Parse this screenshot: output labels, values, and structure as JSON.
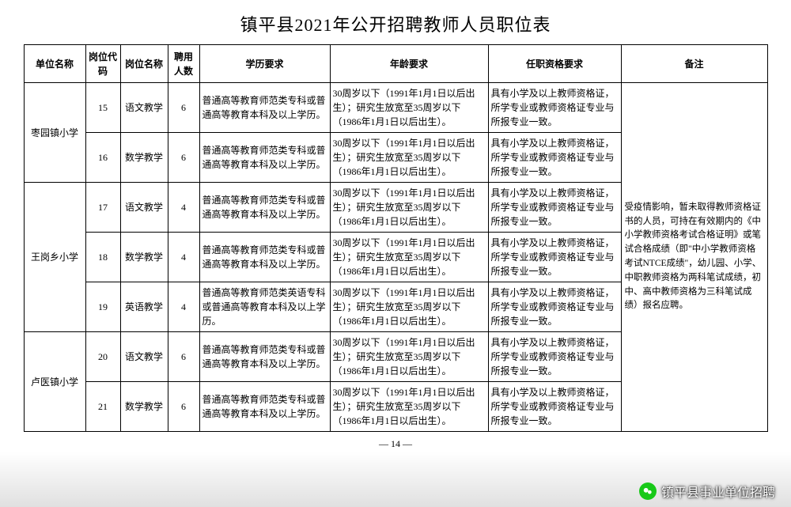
{
  "title": "镇平县2021年公开招聘教师人员职位表",
  "pageNumber": "— 14 —",
  "watermark": "镇平县事业单位招聘",
  "headers": {
    "unit": "单位名称",
    "code": "岗位代码",
    "position": "岗位名称",
    "count": "聘用人数",
    "education": "学历要求",
    "age": "年龄要求",
    "qualification": "任职资格要求",
    "remark": "备注"
  },
  "groups": [
    {
      "unit": "枣园镇小学",
      "rows": [
        {
          "code": "15",
          "position": "语文教学",
          "count": "6",
          "education": "普通高等教育师范类专科或普通高等教育本科及以上学历。",
          "age": "30周岁以下（1991年1月1日以后出生）；研究生放宽至35周岁以下（1986年1月1日以后出生）。",
          "qualification": "具有小学及以上教师资格证，所学专业或教师资格证专业与所报专业一致。"
        },
        {
          "code": "16",
          "position": "数学教学",
          "count": "6",
          "education": "普通高等教育师范类专科或普通高等教育本科及以上学历。",
          "age": "30周岁以下（1991年1月1日以后出生）；研究生放宽至35周岁以下（1986年1月1日以后出生）。",
          "qualification": "具有小学及以上教师资格证，所学专业或教师资格证专业与所报专业一致。"
        }
      ]
    },
    {
      "unit": "王岗乡小学",
      "rows": [
        {
          "code": "17",
          "position": "语文教学",
          "count": "4",
          "education": "普通高等教育师范类专科或普通高等教育本科及以上学历。",
          "age": "30周岁以下（1991年1月1日以后出生）；研究生放宽至35周岁以下（1986年1月1日以后出生）。",
          "qualification": "具有小学及以上教师资格证，所学专业或教师资格证专业与所报专业一致。"
        },
        {
          "code": "18",
          "position": "数学教学",
          "count": "4",
          "education": "普通高等教育师范类专科或普通高等教育本科及以上学历。",
          "age": "30周岁以下（1991年1月1日以后出生）；研究生放宽至35周岁以下（1986年1月1日以后出生）。",
          "qualification": "具有小学及以上教师资格证，所学专业或教师资格证专业与所报专业一致。"
        },
        {
          "code": "19",
          "position": "英语教学",
          "count": "4",
          "education": "普通高等教育师范类英语专科或普通高等教育本科及以上学历。",
          "age": "30周岁以下（1991年1月1日以后出生）；研究生放宽至35周岁以下（1986年1月1日以后出生）。",
          "qualification": "具有小学及以上教师资格证，所学专业或教师资格证专业与所报专业一致。"
        }
      ]
    },
    {
      "unit": "卢医镇小学",
      "rows": [
        {
          "code": "20",
          "position": "语文教学",
          "count": "6",
          "education": "普通高等教育师范类专科或普通高等教育本科及以上学历。",
          "age": "30周岁以下（1991年1月1日以后出生）；研究生放宽至35周岁以下（1986年1月1日以后出生）。",
          "qualification": "具有小学及以上教师资格证，所学专业或教师资格证专业与所报专业一致。"
        },
        {
          "code": "21",
          "position": "数学教学",
          "count": "6",
          "education": "普通高等教育师范类专科或普通高等教育本科及以上学历。",
          "age": "30周岁以下（1991年1月1日以后出生）；研究生放宽至35周岁以下（1986年1月1日以后出生）。",
          "qualification": "具有小学及以上教师资格证，所学专业或教师资格证专业与所报专业一致。"
        }
      ]
    }
  ],
  "remarkText": "受疫情影响，暂未取得教师资格证书的人员，可持在有效期内的《中小学教师资格考试合格证明》或笔试合格成绩（即\"中小学教师资格考试NTCE成绩\"，幼儿园、小学、中职教师资格为两科笔试成绩，初中、高中教师资格为三科笔试成绩）报名应聘。"
}
